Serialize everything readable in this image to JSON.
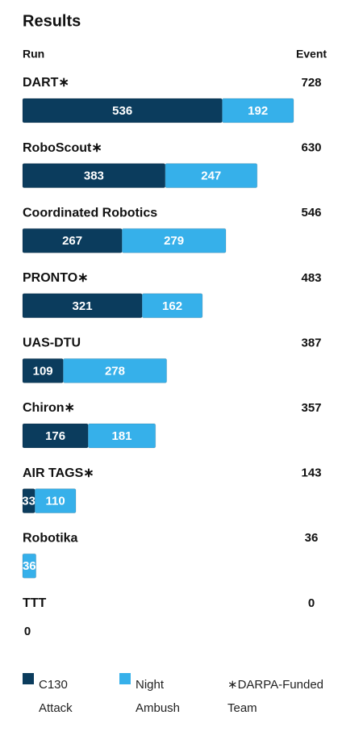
{
  "chart_data": {
    "type": "bar",
    "orientation": "horizontal",
    "stacked": true,
    "title": "Results",
    "category_header": "Run",
    "total_header": "Event",
    "categories": [
      "DART∗",
      "RoboScout∗",
      "Coordinated Robotics",
      "PRONTO∗",
      "UAS-DTU",
      "Chiron∗",
      "AIR TAGS∗",
      "Robotika",
      "TTT"
    ],
    "totals": [
      728,
      630,
      546,
      483,
      387,
      357,
      143,
      36,
      0
    ],
    "series": [
      {
        "name": "C130 Attack",
        "color": "#0b3c5d",
        "values": [
          536,
          383,
          267,
          321,
          109,
          176,
          33,
          0,
          0
        ]
      },
      {
        "name": "Night Ambush",
        "color": "#36b0ea",
        "values": [
          192,
          247,
          279,
          162,
          278,
          181,
          110,
          36,
          0
        ]
      }
    ],
    "note": "∗DARPA-Funded Team"
  }
}
